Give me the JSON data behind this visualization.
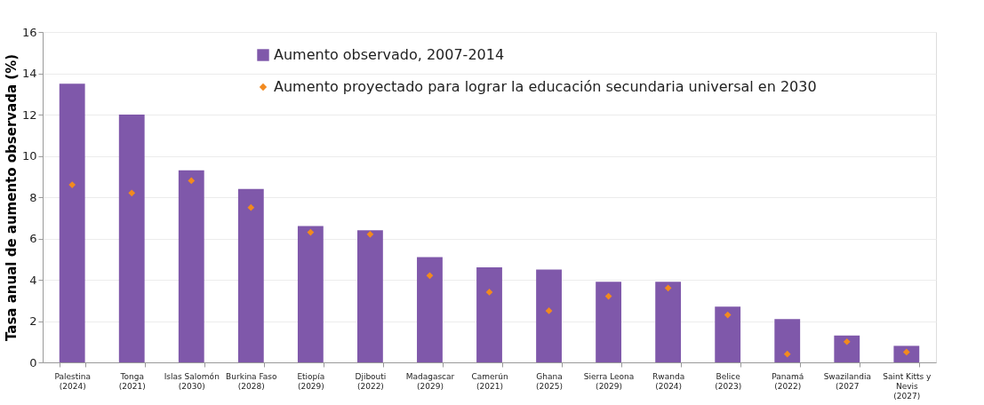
{
  "chart_data": {
    "type": "bar",
    "ylabel": "Tasa anual de aumento observada (%)",
    "categories": [
      "Palestina\n(2024)",
      "Tonga\n(2021)",
      "Islas Salomón\n(2030)",
      "Burkina Faso\n(2028)",
      "Etiopía\n(2029)",
      "Djibouti\n(2022)",
      "Madagascar\n(2029)",
      "Camerún\n(2021)",
      "Ghana\n(2025)",
      "Sierra Leona\n(2029)",
      "Rwanda\n(2024)",
      "Belice\n(2023)",
      "Panamá\n(2022)",
      "Swazilandia\n(2027",
      "Saint Kitts y\nNevis\n(2027)"
    ],
    "series": [
      {
        "name": "Aumento observado, 2007-2014",
        "color": "#7f58aa",
        "values": [
          13.5,
          12.0,
          9.3,
          8.4,
          6.6,
          6.4,
          5.1,
          4.6,
          4.5,
          3.9,
          3.9,
          2.7,
          2.1,
          1.3,
          0.8
        ]
      },
      {
        "name": "Aumento proyectado para lograr la educación secundaria universal en 2030",
        "type": "scatter",
        "color": "#f28a1e",
        "values": [
          8.6,
          8.2,
          8.8,
          7.5,
          6.3,
          6.2,
          4.2,
          3.4,
          2.5,
          3.2,
          3.6,
          2.3,
          0.4,
          1.0,
          0.5
        ]
      }
    ],
    "ylim": [
      0,
      16
    ],
    "yticks": [
      0,
      2,
      4,
      6,
      8,
      10,
      12,
      14,
      16
    ],
    "grid": "y",
    "legend": "top",
    "marker": "diamond"
  }
}
